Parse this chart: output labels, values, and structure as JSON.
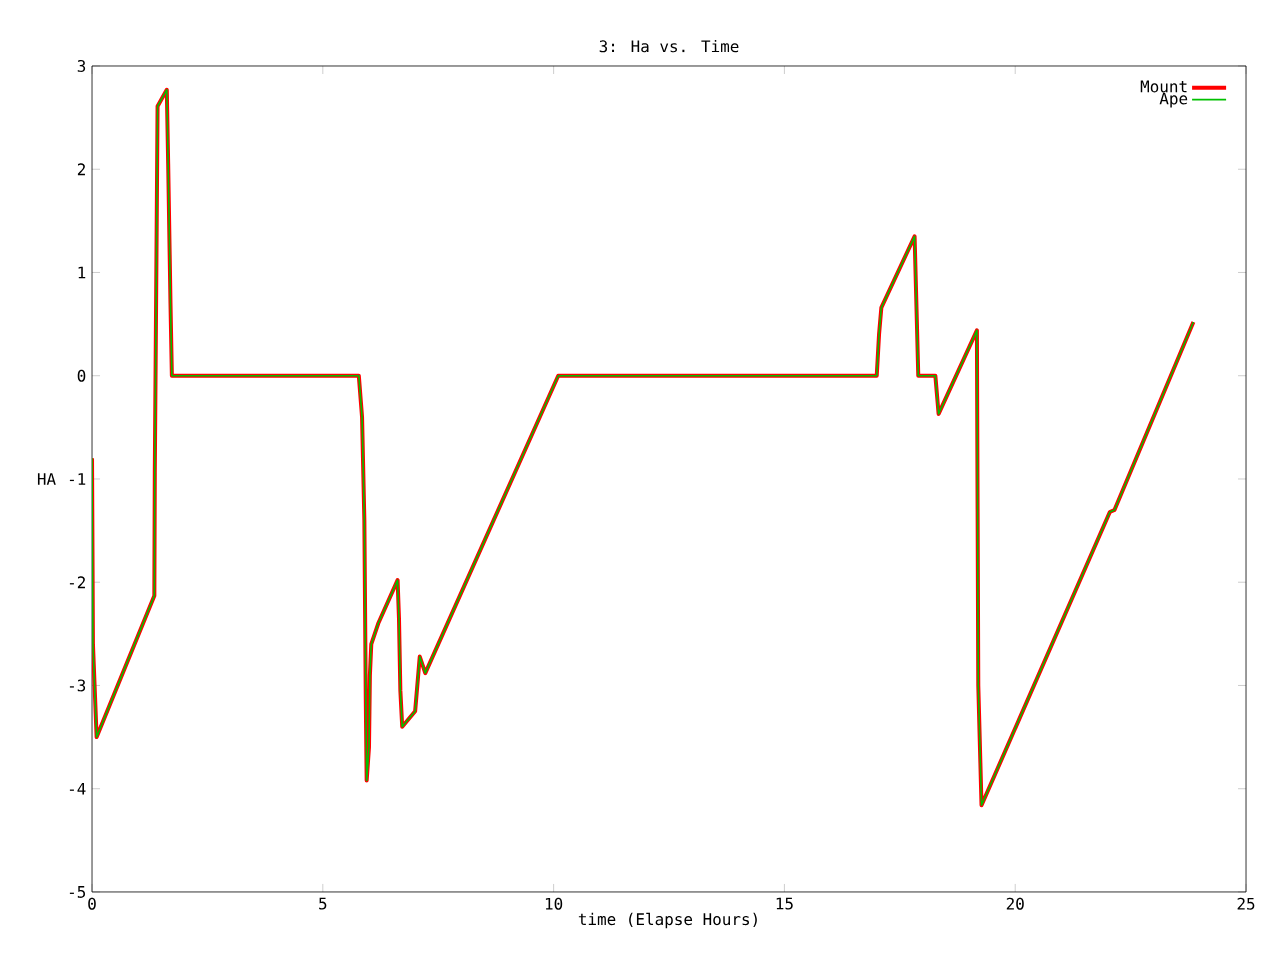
{
  "chart_data": {
    "type": "line",
    "title": "3: Ha vs. Time",
    "xlabel": "time (Elapse Hours)",
    "ylabel": "HA",
    "x": [
      0,
      0.02,
      0.1,
      1.35,
      1.36,
      1.4,
      1.42,
      1.62,
      1.65,
      1.7,
      1.73,
      5.78,
      5.85,
      5.9,
      5.93,
      5.95,
      6.0,
      6.02,
      6.05,
      6.2,
      6.62,
      6.65,
      6.68,
      6.72,
      7.0,
      7.1,
      7.22,
      10.1,
      17.0,
      17.05,
      17.1,
      17.82,
      17.85,
      17.9,
      18.27,
      18.34,
      19.17,
      19.2,
      19.27,
      22.05,
      22.15,
      23.86
    ],
    "series": [
      {
        "name": "Mount",
        "color": "#ff0000",
        "values": [
          -0.8,
          -2.6,
          -3.5,
          -2.13,
          -0.94,
          1.39,
          2.61,
          2.77,
          2.05,
          0.7,
          0,
          0,
          -0.4,
          -1.4,
          -3.1,
          -3.92,
          -3.6,
          -2.9,
          -2.6,
          -2.4,
          -1.98,
          -2.35,
          -3.05,
          -3.4,
          -3.25,
          -2.72,
          -2.88,
          0,
          0,
          0.4,
          0.66,
          1.35,
          0.85,
          0,
          0,
          -0.37,
          0.44,
          -3.0,
          -4.16,
          -1.32,
          -1.3,
          0.52
        ]
      },
      {
        "name": "Ape",
        "color": "#00c000",
        "values": [
          -0.8,
          -2.6,
          -3.5,
          -2.13,
          -0.94,
          1.39,
          2.61,
          2.77,
          2.05,
          0.7,
          0,
          0,
          -0.4,
          -1.4,
          -3.1,
          -3.92,
          -3.6,
          -2.9,
          -2.6,
          -2.4,
          -1.98,
          -2.35,
          -3.05,
          -3.4,
          -3.25,
          -2.72,
          -2.88,
          0,
          0,
          0.4,
          0.66,
          1.35,
          0.85,
          0,
          0,
          -0.37,
          0.44,
          -3.0,
          -4.16,
          -1.32,
          -1.3,
          0.52
        ]
      }
    ],
    "xlim": [
      0,
      25
    ],
    "xticks": [
      0,
      5,
      10,
      15,
      20,
      25
    ],
    "ylim": [
      -5,
      3
    ],
    "yticks": [
      -5,
      -4,
      -3,
      -2,
      -1,
      0,
      1,
      2,
      3
    ],
    "legend": "top right",
    "marker": "none",
    "line_style": "solid"
  }
}
